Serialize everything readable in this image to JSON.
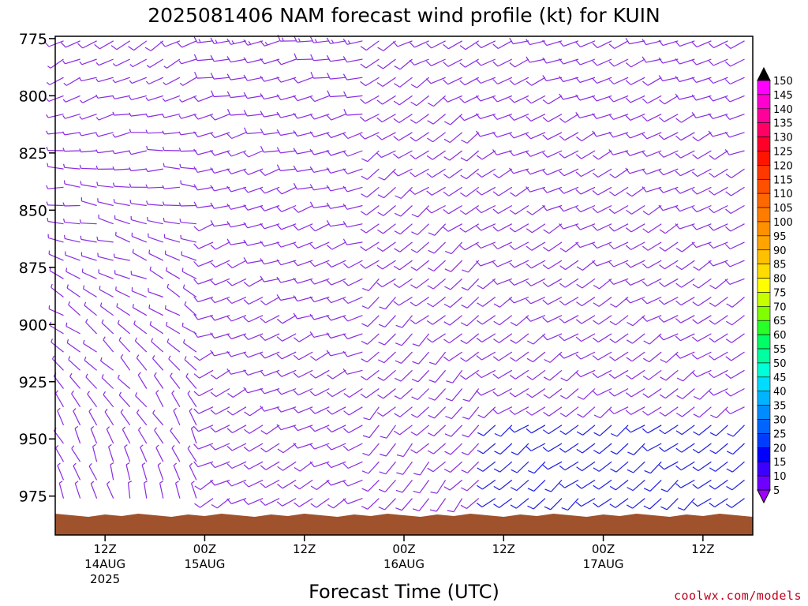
{
  "chart_data": {
    "type": "wind-barb-time-height",
    "title": "2025081406 NAM forecast wind profile (kt) for KUIN",
    "xlabel": "Forecast Time (UTC)",
    "ylabel": "",
    "y_ticks": [
      "775",
      "800",
      "825",
      "850",
      "875",
      "900",
      "925",
      "950",
      "975"
    ],
    "y_values": [
      775,
      800,
      825,
      850,
      875,
      900,
      925,
      950,
      975
    ],
    "ylim": [
      774,
      992
    ],
    "x_ticks": [
      {
        "hour": 6,
        "label": "12Z",
        "sub": "14AUG",
        "sub2": "2025"
      },
      {
        "hour": 18,
        "label": "00Z",
        "sub": "15AUG",
        "sub2": ""
      },
      {
        "hour": 30,
        "label": "12Z",
        "sub": "",
        "sub2": ""
      },
      {
        "hour": 42,
        "label": "00Z",
        "sub": "16AUG",
        "sub2": ""
      },
      {
        "hour": 54,
        "label": "12Z",
        "sub": "",
        "sub2": ""
      },
      {
        "hour": 66,
        "label": "00Z",
        "sub": "17AUG",
        "sub2": ""
      },
      {
        "hour": 78,
        "label": "12Z",
        "sub": "",
        "sub2": ""
      }
    ],
    "xlim": [
      0,
      84
    ],
    "colorbar": {
      "labels": [
        "150",
        "145",
        "140",
        "135",
        "130",
        "125",
        "120",
        "115",
        "110",
        "105",
        "100",
        "95",
        "90",
        "85",
        "80",
        "75",
        "70",
        "65",
        "60",
        "55",
        "50",
        "45",
        "40",
        "35",
        "30",
        "25",
        "20",
        "15",
        "10",
        "5"
      ],
      "colors": [
        "#ff00ff",
        "#ff00d0",
        "#ff009a",
        "#ff0064",
        "#ff0028",
        "#ff1400",
        "#ff3800",
        "#ff5000",
        "#ff6800",
        "#ff7c00",
        "#ff9000",
        "#ffa400",
        "#ffc000",
        "#ffdc00",
        "#ffff00",
        "#c8ff00",
        "#80ff00",
        "#28ff28",
        "#00ff64",
        "#00ffa0",
        "#00ffd8",
        "#00dcff",
        "#00b4ff",
        "#008cff",
        "#0064ff",
        "#003cff",
        "#0000ff",
        "#3c00ff",
        "#6e00ff",
        "#a000ff"
      ]
    },
    "terrain_color": "#a0522d",
    "barb_colors": {
      "light": "#8a2be2",
      "moderate": "#1e1ee6"
    },
    "barb_regions": [
      {
        "from_hour": 0,
        "to_hour": 18,
        "dir_low": 350,
        "dir_high": 240,
        "spd_low": 5,
        "spd_high": 10
      },
      {
        "from_hour": 18,
        "to_hour": 38,
        "dir_low": 240,
        "dir_high": 260,
        "spd_low": 10,
        "spd_high": 15
      },
      {
        "from_hour": 38,
        "to_hour": 52,
        "dir_low": 220,
        "dir_high": 240,
        "spd_low": 10,
        "spd_high": 10
      },
      {
        "from_hour": 52,
        "to_hour": 84,
        "dir_low": 230,
        "dir_high": 250,
        "spd_low": 15,
        "spd_high": 10
      }
    ],
    "watermark": "coolwx.com/models"
  }
}
